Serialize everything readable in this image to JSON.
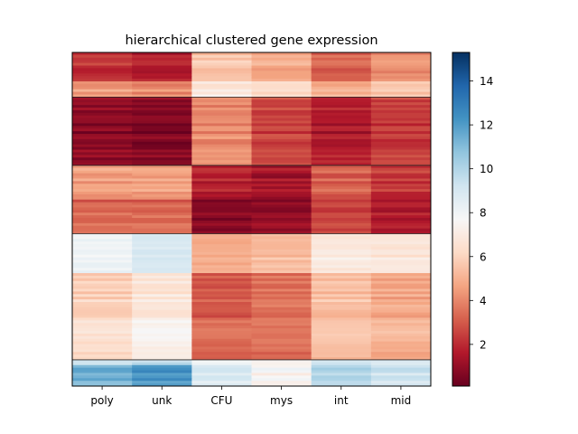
{
  "chart_data": {
    "type": "heatmap",
    "title": "hierarchical clustered gene expression",
    "xlabel": "",
    "ylabel": "",
    "columns": [
      "poly",
      "unk",
      "CFU",
      "mys",
      "int",
      "mid"
    ],
    "colormap": "RdBu",
    "color_range": [
      0.1,
      15.3
    ],
    "colorbar_ticks": [
      2,
      4,
      6,
      8,
      10,
      12,
      14
    ],
    "row_blocks": [
      {
        "cluster": 1,
        "rows": 11,
        "values": [
          2.2,
          1.8,
          5.6,
          4.8,
          3.3,
          4.3
        ]
      },
      {
        "cluster": 1,
        "rows": 6,
        "values": [
          4.5,
          4.2,
          7.0,
          6.4,
          5.1,
          5.8
        ]
      },
      {
        "cluster": 2,
        "rows": 26,
        "values": [
          0.8,
          0.6,
          4.1,
          2.5,
          1.6,
          2.3
        ]
      },
      {
        "cluster": 3,
        "rows": 13,
        "values": [
          4.6,
          4.6,
          1.8,
          1.4,
          3.2,
          2.3
        ]
      },
      {
        "cluster": 3,
        "rows": 13,
        "values": [
          3.3,
          3.3,
          0.7,
          0.9,
          2.5,
          1.6
        ]
      },
      {
        "cluster": 4,
        "rows": 15,
        "values": [
          8.0,
          8.9,
          4.8,
          5.2,
          6.8,
          6.7
        ]
      },
      {
        "cluster": 4,
        "rows": 17,
        "values": [
          5.9,
          6.8,
          3.0,
          3.6,
          5.4,
          4.8
        ]
      },
      {
        "cluster": 4,
        "rows": 16,
        "values": [
          6.5,
          7.4,
          3.4,
          3.7,
          5.5,
          5.2
        ]
      },
      {
        "cluster": 5,
        "rows": 2,
        "values": [
          9.0,
          9.5,
          7.8,
          7.4,
          9.2,
          8.6
        ]
      },
      {
        "cluster": 5,
        "rows": 8,
        "values": [
          11.5,
          12.3,
          9.0,
          7.6,
          10.0,
          9.3
        ]
      }
    ],
    "row_noise": 0.9
  }
}
